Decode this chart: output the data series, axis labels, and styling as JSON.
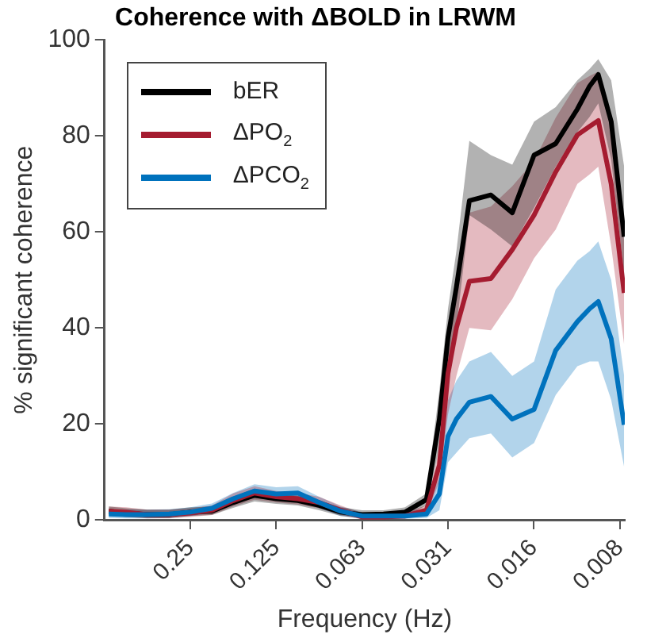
{
  "chart_data": {
    "type": "line",
    "title": "Coherence with ΔBOLD in LRWM",
    "xlabel": "Frequency (Hz)",
    "ylabel": "% significant coherence",
    "x": [
      0.483,
      0.42,
      0.354,
      0.297,
      0.25,
      0.21,
      0.177,
      0.149,
      0.125,
      0.105,
      0.0884,
      0.0743,
      0.0625,
      0.0526,
      0.0442,
      0.0372,
      0.0335,
      0.03125,
      0.0292,
      0.0263,
      0.0221,
      0.0186,
      0.0156,
      0.0131,
      0.011,
      0.00996,
      0.00929,
      0.00837,
      0.00754
    ],
    "log": "x",
    "xlim": [
      0.5,
      0.0075
    ],
    "xticks": [
      0.25,
      0.125,
      {
        "value": 0.0625,
        "label": "0.063"
      },
      {
        "value": 0.03125,
        "label": "0.031"
      },
      {
        "value": 0.015625,
        "label": "0.016"
      },
      {
        "value": 0.0078125,
        "label": "0.008"
      }
    ],
    "ylim": [
      0,
      100
    ],
    "yticks": [
      0,
      20,
      40,
      60,
      80,
      100
    ],
    "grid": false,
    "legend": "top left",
    "marker": "none",
    "line_style": "solid",
    "series": [
      {
        "name": "bER",
        "color": "#000000",
        "values": [
          1.8,
          1.4,
          1.1,
          1.1,
          1.6,
          1.8,
          3.6,
          5.1,
          4.4,
          4,
          3,
          1.6,
          1.1,
          1.2,
          1.6,
          4.2,
          21,
          38,
          48.5,
          66.5,
          67.7,
          64,
          76,
          78.4,
          85.6,
          90.4,
          92.8,
          83,
          59
        ],
        "lower": [
          1,
          0.6,
          0.4,
          0.4,
          0.8,
          1,
          2.5,
          3.8,
          3.3,
          3,
          2,
          0.8,
          0.4,
          0.5,
          0.8,
          3,
          15,
          32,
          40,
          63.5,
          60.5,
          57,
          65,
          73.6,
          80.8,
          84,
          86.8,
          75,
          51
        ],
        "upper": [
          2.8,
          2.4,
          2.1,
          2.1,
          2.6,
          2.8,
          4.8,
          6.5,
          5.6,
          5,
          4,
          2.6,
          2,
          2,
          2.6,
          5.5,
          27,
          44,
          56,
          79,
          76,
          74,
          83,
          86,
          91.6,
          94,
          96,
          91.6,
          73.6
        ]
      },
      {
        "name": "ΔPO$_{2}$",
        "color": "#a51c30",
        "values": [
          1.8,
          1.6,
          1.1,
          1.1,
          1.4,
          2,
          4,
          5.6,
          4.8,
          4.4,
          3.6,
          2,
          0.6,
          0.6,
          0.8,
          2,
          11.4,
          30.5,
          40,
          49.7,
          50.3,
          56.3,
          63.5,
          72.5,
          80.2,
          82,
          83.2,
          70,
          47.3
        ],
        "lower": [
          0.8,
          0.6,
          0.3,
          0.3,
          0.6,
          1,
          2.8,
          4.2,
          3.6,
          3.2,
          2.4,
          1,
          0.1,
          0.1,
          0.2,
          1,
          8,
          22,
          30,
          40,
          39.5,
          46,
          54.5,
          60.5,
          70,
          72,
          73.6,
          57,
          36.5
        ],
        "upper": [
          2.8,
          2.6,
          2.1,
          2.1,
          2.4,
          3,
          5.5,
          7,
          6,
          5.6,
          4.8,
          3,
          1.4,
          1.4,
          1.6,
          3,
          15,
          38,
          48,
          64,
          65.3,
          69.5,
          74.8,
          83.8,
          91,
          92.5,
          93.4,
          83,
          58
        ]
      },
      {
        "name": "ΔPCO$_{2}$",
        "color": "#0072bd",
        "values": [
          1.2,
          1.1,
          1.1,
          1.2,
          1.6,
          2.4,
          4.4,
          6,
          5.4,
          5.6,
          3.6,
          1.8,
          0.8,
          0.8,
          0.8,
          1.2,
          5.4,
          17.4,
          21,
          24.5,
          25.7,
          21,
          23,
          35.3,
          41.3,
          44,
          45.5,
          37.7,
          19.8
        ],
        "lower": [
          0.4,
          0.3,
          0.3,
          0.4,
          0.8,
          1.4,
          3.2,
          4.6,
          4,
          4.2,
          2.4,
          0.8,
          0.2,
          0.2,
          0.2,
          0.4,
          2,
          12,
          14,
          17,
          18,
          13,
          16,
          26,
          32,
          33,
          33,
          25,
          11
        ],
        "upper": [
          2.2,
          2.1,
          2.1,
          2.2,
          2.6,
          3.4,
          5.6,
          7.4,
          6.8,
          7,
          4.8,
          2.8,
          1.6,
          1.6,
          1.6,
          2.4,
          9,
          25,
          29,
          33,
          35,
          30,
          33,
          48,
          54,
          56,
          58,
          50,
          30
        ]
      }
    ]
  }
}
